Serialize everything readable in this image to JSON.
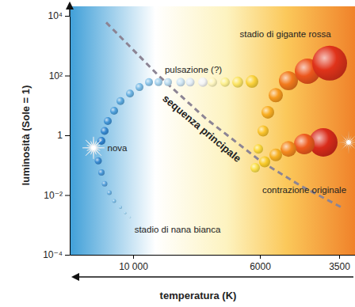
{
  "chart_data": {
    "type": "scatter",
    "x_label": "temperatura (K)",
    "y_label": "luminosità (Sole = 1)",
    "xlim": [
      12000,
      3000
    ],
    "xticks": [
      {
        "value": 10000,
        "label": "10 000"
      },
      6000,
      3500
    ],
    "ylim": [
      0.0001,
      10000
    ],
    "yticks": [
      {
        "value": 10000,
        "label": "10⁴"
      },
      {
        "value": 100,
        "label": "10²"
      },
      1,
      {
        "value": 0.01,
        "label": "10⁻²"
      },
      {
        "value": 0.0001,
        "label": "10⁻⁴"
      }
    ],
    "log": "y",
    "grid": false,
    "series": [
      {
        "type": "line",
        "line_style": "dashed",
        "color": "#8c8494",
        "label": "sequenza principale",
        "x": [
          10850,
          9200,
          7700,
          5950,
          4700,
          3450
        ],
        "values": [
          6000,
          100,
          3.6,
          0.13,
          0.02,
          0.004
        ]
      },
      {
        "type": "scatter",
        "marker": "sphere",
        "x": [
          4000,
          4600,
          5100,
          5500,
          5850,
          6150,
          6050,
          5900,
          5750,
          5500,
          5100,
          4500,
          3800,
          6250,
          6700,
          7100,
          7500,
          7800,
          8200,
          8500,
          8900,
          9200,
          9500,
          9800,
          10100,
          10400,
          10600,
          10800,
          10900,
          11000,
          11100,
          11000,
          10900,
          10750,
          10600,
          10400,
          10250,
          10100
        ],
        "values": [
          0.58,
          0.51,
          0.35,
          0.22,
          0.13,
          0.082,
          0.35,
          1.4,
          5.9,
          22,
          67,
          140,
          260,
          63,
          60,
          60,
          60,
          60,
          60,
          60,
          60,
          60,
          60,
          41,
          25,
          14,
          6.6,
          3.0,
          1.4,
          0.65,
          0.14,
          0.057,
          0.024,
          0.012,
          0.0063,
          0.0039,
          0.0025,
          0.0018
        ],
        "sizes": [
          18,
          13,
          10,
          8,
          7,
          6,
          6,
          7,
          8,
          9,
          12,
          16,
          22,
          8,
          7,
          6,
          6,
          6,
          5.5,
          5.5,
          5,
          5,
          5,
          5,
          5,
          5,
          5,
          5,
          5,
          5,
          4.5,
          4,
          3.5,
          3,
          2.5,
          2,
          1.5,
          1.2
        ],
        "colors": [
          "#d92b1a",
          "#ee5a1c",
          "#f58a1e",
          "#f7b022",
          "#f9cb2a",
          "#fbe04a",
          "#fcd83a",
          "#fbc42c",
          "#f9ae22",
          "#f79a1e",
          "#f27a1c",
          "#ec561c",
          "#e0331a",
          "#fbd23a",
          "#fce464",
          "#fdf090",
          "#fef6c0",
          "#f4f4f4",
          "#e4eef6",
          "#d0e6f4",
          "#bcdcf0",
          "#a6d2ee",
          "#8ec6ea",
          "#7cbce6",
          "#6ab2e2",
          "#5aa8de",
          "#4c9eda",
          "#4094d6",
          "#368ad2",
          "#2f82ce",
          "#3a8cd2",
          "#4a98d8",
          "#5aa4de",
          "#6ab0e2",
          "#7abce6",
          "#8ac6ea",
          "#9ad0ee",
          "#aad8f0"
        ]
      },
      {
        "type": "scatter",
        "marker": "burst",
        "x": [
          11250,
          3200
        ],
        "values": [
          0.38,
          0.58
        ],
        "colors": [
          "#ffffff",
          "#f7a050"
        ]
      }
    ],
    "annotations": [
      {
        "text": "stadio di gigante rossa",
        "x": 5200,
        "y": 2500
      },
      {
        "text": "pulsazione (?)",
        "x": 8100,
        "y": 160
      },
      {
        "text": "nova",
        "x": 10500,
        "y": 0.38
      },
      {
        "text": "contrazione originale",
        "x": 4600,
        "y": 0.015
      },
      {
        "text": "stadio di nana bianca",
        "x": 8600,
        "y": 0.0007
      }
    ]
  }
}
